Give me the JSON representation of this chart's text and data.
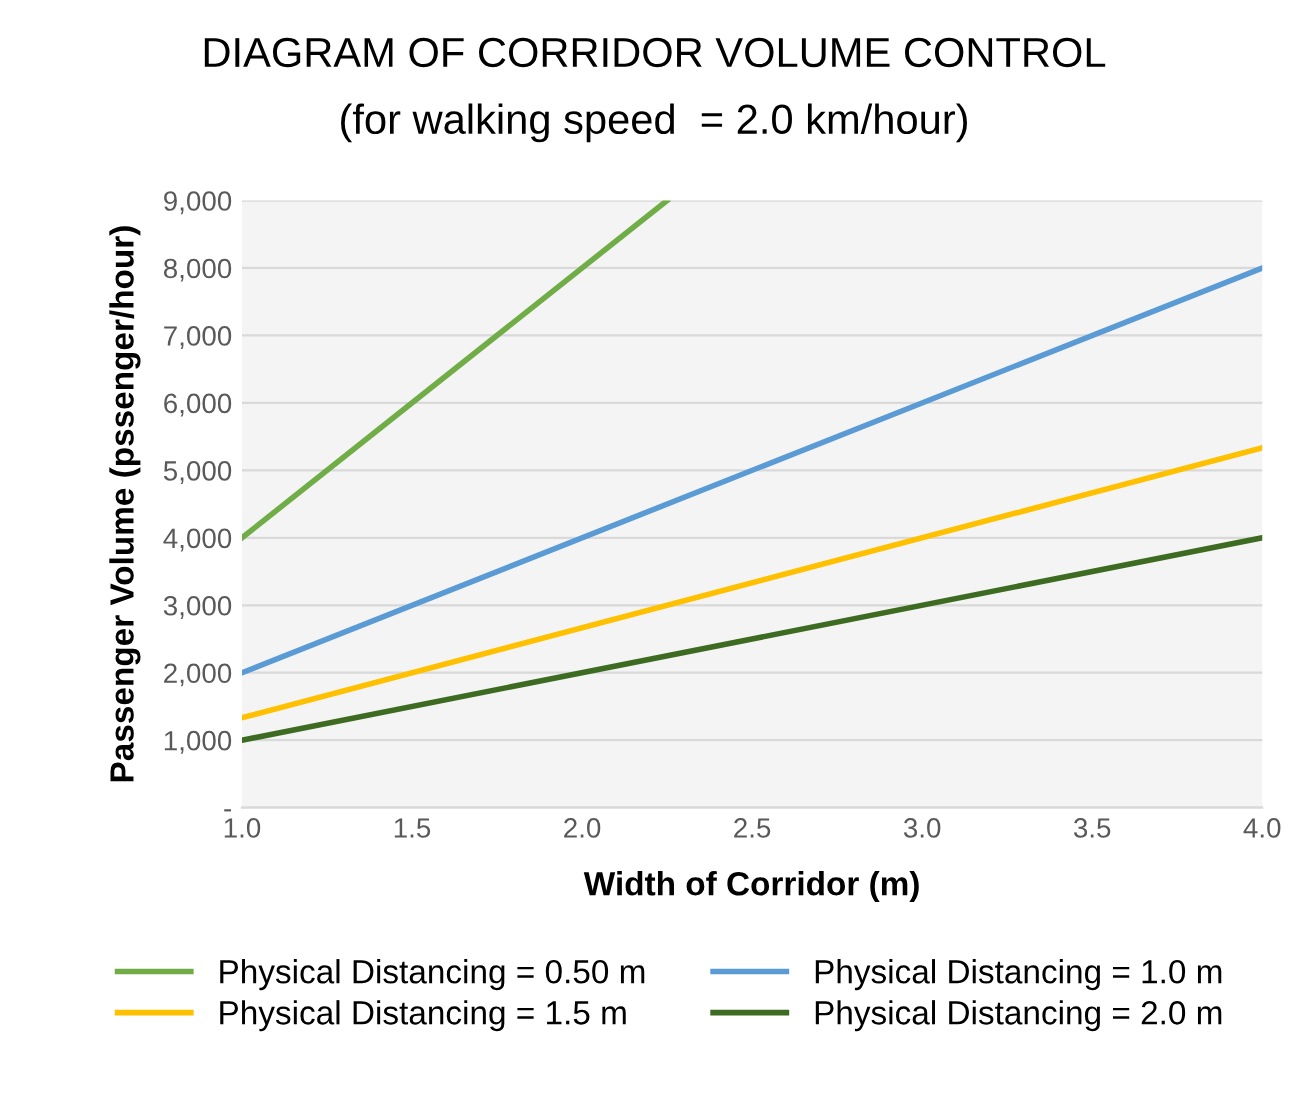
{
  "chart_data": {
    "type": "line",
    "title": "DIAGRAM OF CORRIDOR VOLUME CONTROL",
    "subtitle": "(for walking speed  = 2.0 km/hour)",
    "xlabel": "Width of Corridor (m)",
    "ylabel": "Passenger Volume (pssenger/hour)",
    "series": [
      {
        "name": "Physical Distancing = 0.50 m",
        "color": "#70ad47",
        "x": [
          1.0,
          2.25
        ],
        "values": [
          4000,
          9000
        ]
      },
      {
        "name": "Physical Distancing = 1.0 m",
        "color": "#5b9bd5",
        "x": [
          1.0,
          4.0
        ],
        "values": [
          2000,
          8000
        ]
      },
      {
        "name": "Physical Distancing = 1.5 m",
        "color": "#ffc000",
        "x": [
          1.0,
          4.0
        ],
        "values": [
          1333,
          5333
        ]
      },
      {
        "name": "Physical Distancing = 2.0 m",
        "color": "#3d6b21",
        "x": [
          1.0,
          4.0
        ],
        "values": [
          1000,
          4000
        ]
      }
    ],
    "xlim": [
      1.0,
      4.0
    ],
    "xticks": [
      {
        "value": 1.0,
        "label": "1.0"
      },
      {
        "value": 1.5,
        "label": "1.5"
      },
      {
        "value": 2.0,
        "label": "2.0"
      },
      {
        "value": 2.5,
        "label": "2.5"
      },
      {
        "value": 3.0,
        "label": "3.0"
      },
      {
        "value": 3.5,
        "label": "3.5"
      },
      {
        "value": 4.0,
        "label": "4.0"
      }
    ],
    "ylim": [
      0,
      9000
    ],
    "yticks": [
      {
        "value": 0,
        "label": "-"
      },
      {
        "value": 1000,
        "label": "1,000"
      },
      {
        "value": 2000,
        "label": "2,000"
      },
      {
        "value": 3000,
        "label": "3,000"
      },
      {
        "value": 4000,
        "label": "4,000"
      },
      {
        "value": 5000,
        "label": "5,000"
      },
      {
        "value": 6000,
        "label": "6,000"
      },
      {
        "value": 7000,
        "label": "7,000"
      },
      {
        "value": 8000,
        "label": "8,000"
      },
      {
        "value": 9000,
        "label": "9,000"
      }
    ],
    "grid": "y",
    "legend": "bottom",
    "marker": "none",
    "line_style": "solid"
  }
}
